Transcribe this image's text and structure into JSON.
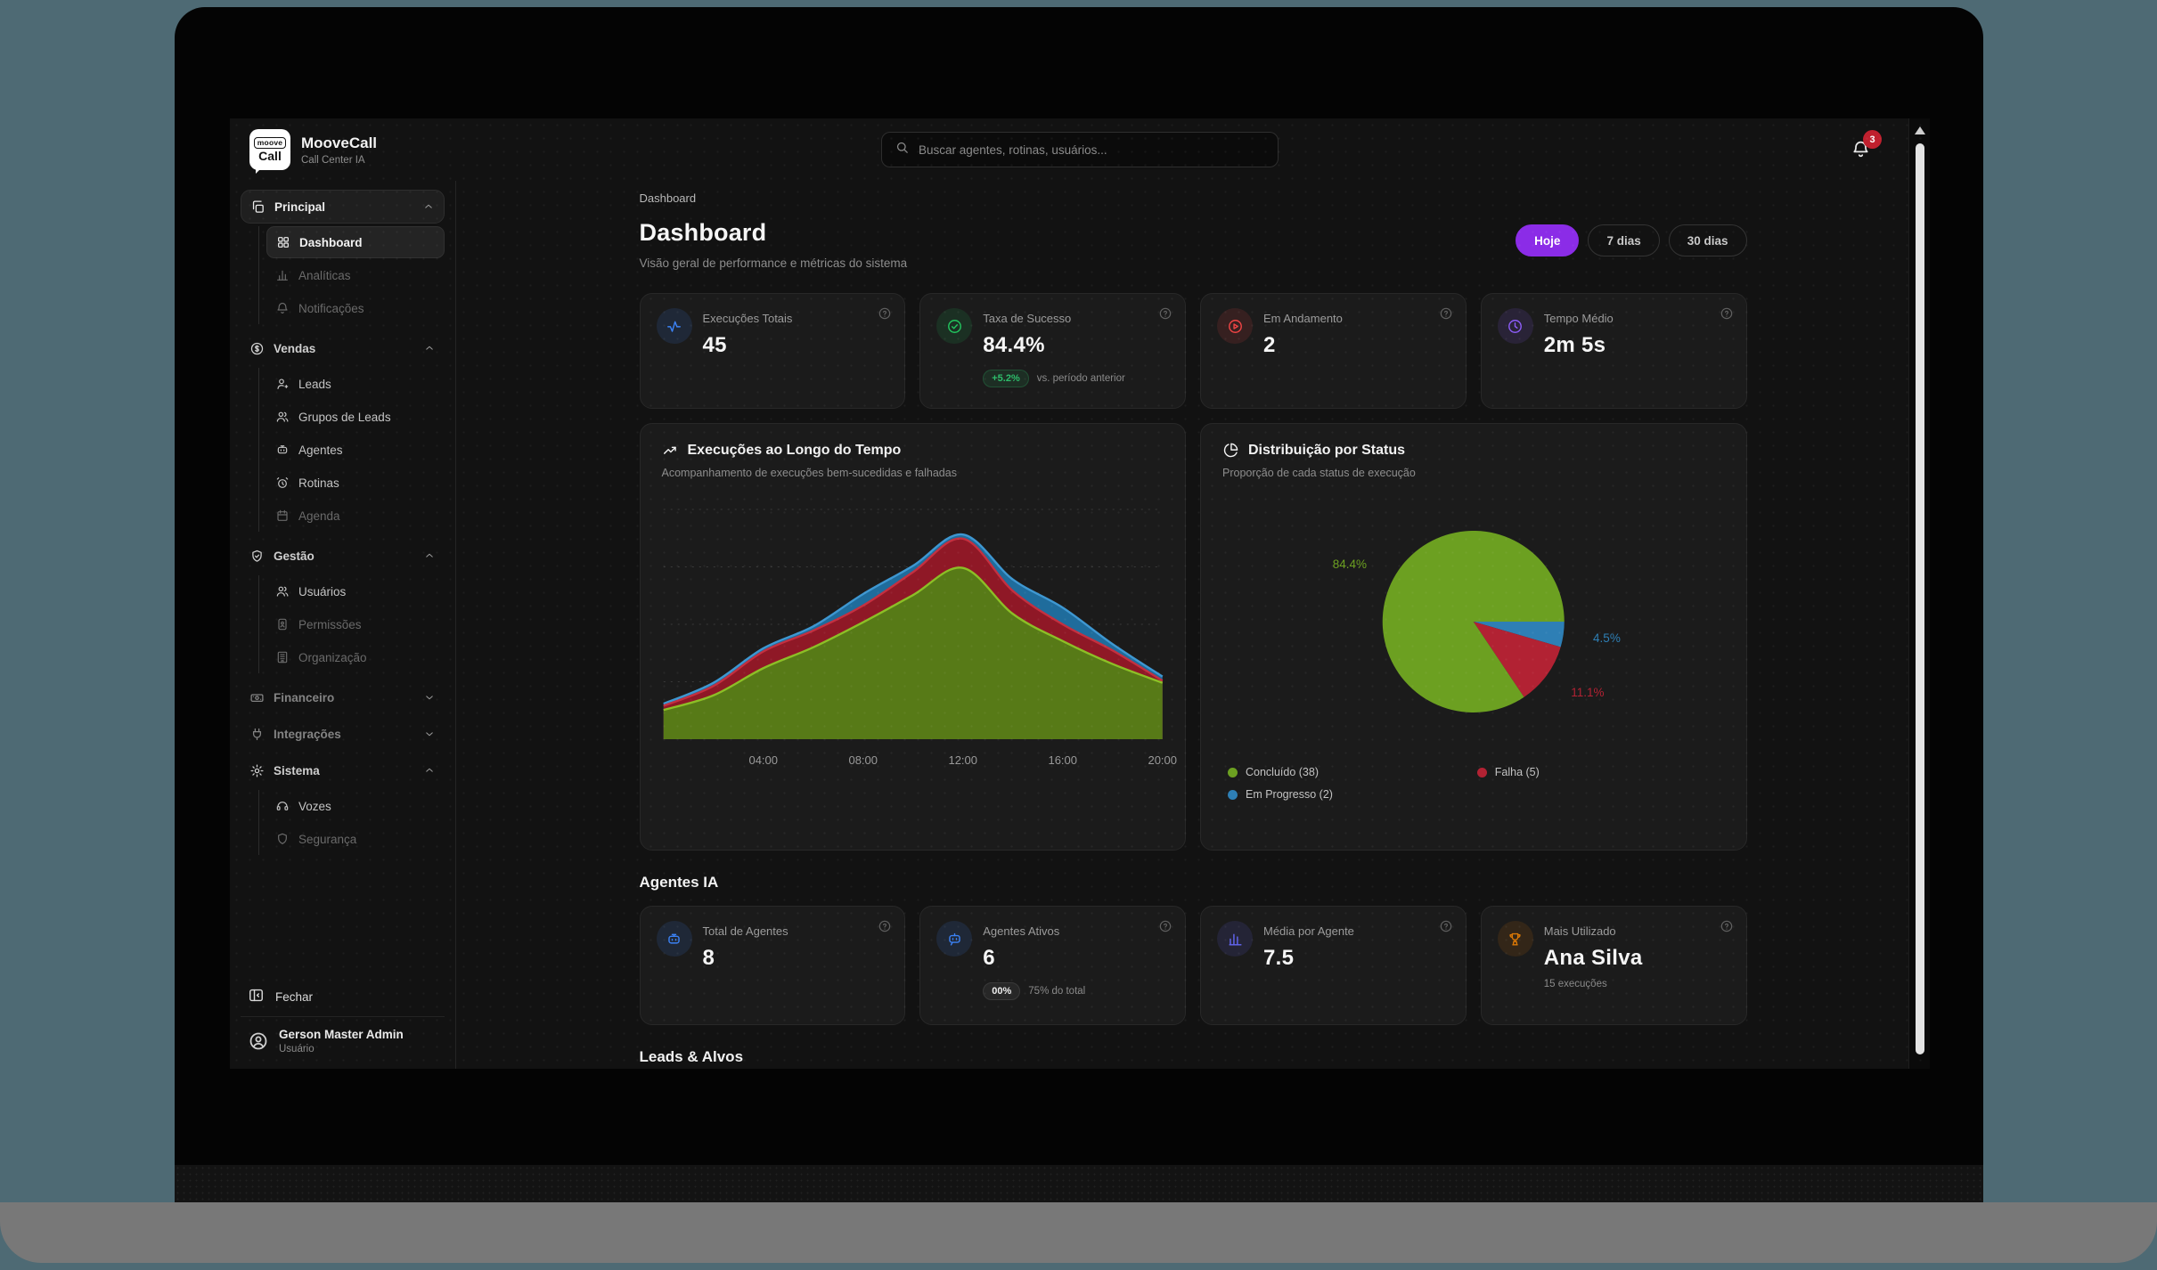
{
  "app": {
    "brand": {
      "logo_line1": "moove",
      "logo_line2": "Call",
      "name": "MooveCall",
      "subtitle": "Call Center IA"
    },
    "search": {
      "placeholder": "Buscar agentes, rotinas, usuários..."
    },
    "notifications": {
      "count": "3"
    },
    "sidebar": {
      "groups": [
        {
          "label": "Principal",
          "icon": "copy",
          "state": "expanded",
          "active": true,
          "items": [
            {
              "label": "Dashboard",
              "icon": "grid",
              "state": "active"
            },
            {
              "label": "Analíticas",
              "icon": "chart",
              "state": "disabled"
            },
            {
              "label": "Notificações",
              "icon": "bell",
              "state": "disabled"
            }
          ]
        },
        {
          "label": "Vendas",
          "icon": "dollar",
          "state": "expanded",
          "active": false,
          "items": [
            {
              "label": "Leads",
              "icon": "user-plus",
              "state": "normal"
            },
            {
              "label": "Grupos de Leads",
              "icon": "users",
              "state": "normal"
            },
            {
              "label": "Agentes",
              "icon": "bot",
              "state": "normal"
            },
            {
              "label": "Rotinas",
              "icon": "alarm",
              "state": "normal"
            },
            {
              "label": "Agenda",
              "icon": "calendar",
              "state": "disabled"
            }
          ]
        },
        {
          "label": "Gestão",
          "icon": "shield-check",
          "state": "expanded",
          "active": false,
          "items": [
            {
              "label": "Usuários",
              "icon": "users",
              "state": "normal"
            },
            {
              "label": "Permissões",
              "icon": "id-badge",
              "state": "disabled"
            },
            {
              "label": "Organização",
              "icon": "building",
              "state": "disabled"
            }
          ]
        },
        {
          "label": "Financeiro",
          "icon": "banknote",
          "state": "collapsed-disabled",
          "active": false,
          "items": []
        },
        {
          "label": "Integrações",
          "icon": "plug",
          "state": "collapsed-disabled",
          "active": false,
          "items": []
        },
        {
          "label": "Sistema",
          "icon": "gear",
          "state": "expanded",
          "active": false,
          "items": [
            {
              "label": "Vozes",
              "icon": "voice",
              "state": "normal"
            },
            {
              "label": "Segurança",
              "icon": "shield",
              "state": "disabled"
            }
          ]
        }
      ],
      "footer": {
        "collapse_label": "Fechar",
        "user_name": "Gerson Master Admin",
        "user_role": "Usuário"
      }
    },
    "page": {
      "breadcrumb": "Dashboard",
      "title": "Dashboard",
      "subtitle": "Visão geral de performance e métricas do sistema",
      "ranges": [
        {
          "label": "Hoje",
          "active": true
        },
        {
          "label": "7 dias",
          "active": false
        },
        {
          "label": "30 dias",
          "active": false
        }
      ]
    },
    "stats": [
      {
        "label": "Execuções Totais",
        "value": "45",
        "icon": "activity",
        "color": "#3B82F6"
      },
      {
        "label": "Taxa de Sucesso",
        "value": "84.4%",
        "icon": "check-circle",
        "color": "#22C55E",
        "badge": "+5.2%",
        "badge_style": "green",
        "badge_note": "vs. período anterior"
      },
      {
        "label": "Em Andamento",
        "value": "2",
        "icon": "play-circle",
        "color": "#EF4444"
      },
      {
        "label": "Tempo Médio",
        "value": "2m 5s",
        "icon": "clock",
        "color": "#8B5CF6"
      }
    ],
    "charts": {
      "executions": {
        "title": "Execuções ao Longo do Tempo",
        "subtitle": "Acompanhamento de execuções bem-sucedidas e falhadas",
        "icon": "trend"
      },
      "status": {
        "title": "Distribuição por Status",
        "subtitle": "Proporção de cada status de execução",
        "icon": "pie",
        "legend": [
          {
            "label": "Concluído (38)",
            "color": "#6CA021"
          },
          {
            "label": "Falha (5)",
            "color": "#B22233"
          },
          {
            "label": "Em Progresso (2)",
            "color": "#2E7FB5"
          }
        ]
      }
    },
    "agents_section": {
      "title": "Agentes IA",
      "stats": [
        {
          "label": "Total de Agentes",
          "value": "8",
          "icon": "bot",
          "color": "#3B82F6"
        },
        {
          "label": "Agentes Ativos",
          "value": "6",
          "icon": "bot-message",
          "color": "#3B82F6",
          "badge": "00%",
          "badge_style": "dark",
          "badge_note": "75% do total"
        },
        {
          "label": "Média por Agente",
          "value": "7.5",
          "icon": "bars",
          "color": "#6366F1"
        },
        {
          "label": "Mais Utilizado",
          "value": "Ana Silva",
          "icon": "trophy",
          "color": "#D97706",
          "sub": "15 execuções"
        }
      ]
    },
    "leads_section": {
      "title": "Leads & Alvos"
    }
  },
  "chart_data": [
    {
      "type": "area",
      "stacked": true,
      "title": "Execuções ao Longo do Tempo",
      "x": [
        "00:00",
        "02:00",
        "04:00",
        "06:00",
        "08:00",
        "10:00",
        "12:00",
        "14:00",
        "16:00",
        "18:00",
        "20:00"
      ],
      "x_tick_labels": [
        "04:00",
        "08:00",
        "12:00",
        "16:00",
        "20:00"
      ],
      "ylim": [
        0,
        11
      ],
      "grid": "dotted-horizontal",
      "legend_position": "none",
      "series": [
        {
          "name": "Bem-sucedidas",
          "color": "#577A17",
          "line_color": "#8CBF26",
          "values": [
            1.4,
            2.1,
            3.4,
            4.4,
            5.6,
            6.9,
            8.2,
            6.0,
            4.7,
            3.6,
            2.7
          ]
        },
        {
          "name": "Falhadas",
          "color": "#8F1826",
          "line_color": "#C43040",
          "values": [
            0.2,
            0.45,
            0.8,
            0.8,
            0.8,
            1.1,
            1.4,
            1.1,
            0.8,
            0.65,
            0.1
          ]
        },
        {
          "name": "Em progresso",
          "color": "#1F6C9C",
          "line_color": "#3E97D1",
          "values": [
            0.1,
            0.15,
            0.15,
            0.2,
            0.55,
            0.3,
            0.2,
            0.55,
            0.8,
            0.3,
            0.2
          ]
        }
      ]
    },
    {
      "type": "pie",
      "title": "Distribuição por Status",
      "start_angle_deg": 0,
      "direction": "clockwise",
      "legend_position": "bottom",
      "slices": [
        {
          "label": "Em Progresso",
          "value": 2,
          "pct": 4.5,
          "color": "#2E7FB5"
        },
        {
          "label": "Falha",
          "value": 5,
          "pct": 11.1,
          "color": "#B22233"
        },
        {
          "label": "Concluído",
          "value": 38,
          "pct": 84.4,
          "color": "#6CA021"
        }
      ]
    }
  ]
}
